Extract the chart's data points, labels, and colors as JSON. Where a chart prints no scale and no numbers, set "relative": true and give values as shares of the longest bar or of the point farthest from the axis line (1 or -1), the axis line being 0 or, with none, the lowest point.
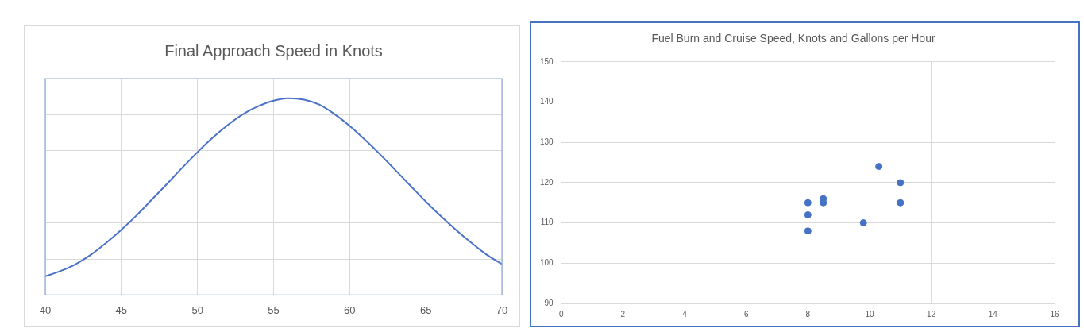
{
  "chart_data": [
    {
      "type": "line",
      "title": "Final Approach Speed in Knots",
      "relative": true,
      "color": "#4a72c8",
      "x": [
        40,
        41,
        42,
        43,
        44,
        45,
        46,
        47,
        48,
        49,
        50,
        51,
        52,
        53,
        54,
        55,
        56,
        57,
        58,
        59,
        60,
        61,
        62,
        63,
        64,
        65,
        66,
        67,
        68,
        69,
        70
      ],
      "values": [
        0.095,
        0.122,
        0.157,
        0.205,
        0.265,
        0.332,
        0.405,
        0.485,
        0.565,
        0.647,
        0.726,
        0.8,
        0.865,
        0.92,
        0.96,
        0.988,
        1.0,
        0.993,
        0.968,
        0.92,
        0.86,
        0.79,
        0.715,
        0.635,
        0.555,
        0.475,
        0.4,
        0.33,
        0.265,
        0.205,
        0.157
      ],
      "xlim": [
        40,
        70
      ],
      "xticks": [
        40,
        45,
        50,
        55,
        60,
        65,
        70
      ],
      "grid": true
    },
    {
      "type": "scatter",
      "title": "Fuel Burn and Cruise Speed, Knots and Gallons per Hour",
      "color": "#4472c4",
      "marker": "circle",
      "x": [
        8,
        8,
        8,
        8.5,
        8.5,
        9.8,
        10.3,
        11,
        11
      ],
      "values": [
        115,
        112,
        108,
        116,
        115,
        110,
        124,
        120,
        115
      ],
      "xlim": [
        0,
        16
      ],
      "xticks": [
        0,
        2,
        4,
        6,
        8,
        10,
        12,
        14,
        16
      ],
      "ylim": [
        90,
        150
      ],
      "yticks": [
        90,
        100,
        110,
        120,
        130,
        140,
        150
      ],
      "grid": true
    }
  ]
}
